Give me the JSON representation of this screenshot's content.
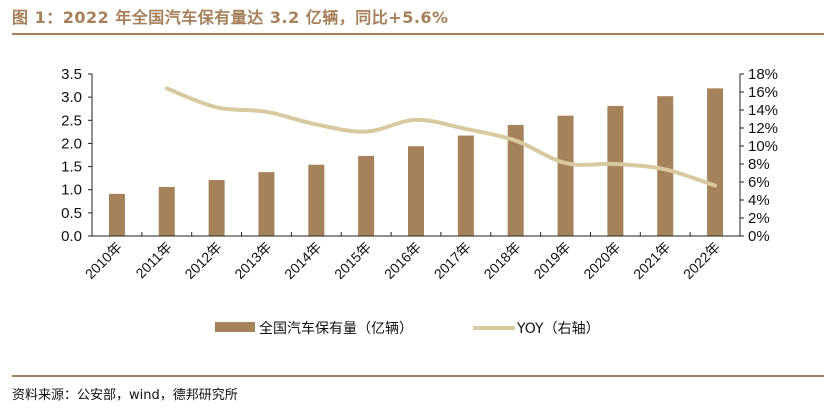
{
  "title": "图 1：2022 年全国汽车保有量达 3.2 亿辆，同比+5.6%",
  "source": "资料来源：公安部，wind，德邦研究所",
  "colors": {
    "bar": "#a6825b",
    "line": "#d9c9a0",
    "accent": "#a6805a"
  },
  "chart_data": {
    "type": "bar+line",
    "categories": [
      "2010年",
      "2011年",
      "2012年",
      "2013年",
      "2014年",
      "2015年",
      "2016年",
      "2017年",
      "2018年",
      "2019年",
      "2020年",
      "2021年",
      "2022年"
    ],
    "series": [
      {
        "name": "全国汽车保有量（亿辆）",
        "type": "bar",
        "axis": "left",
        "values": [
          0.91,
          1.06,
          1.21,
          1.38,
          1.54,
          1.73,
          1.94,
          2.17,
          2.4,
          2.6,
          2.81,
          3.02,
          3.19
        ]
      },
      {
        "name": "YOY（右轴）",
        "type": "line",
        "axis": "right",
        "values": [
          null,
          16.4,
          14.3,
          13.8,
          12.4,
          11.6,
          12.9,
          11.9,
          10.6,
          8.1,
          8.0,
          7.4,
          5.6
        ]
      }
    ],
    "ylim_left": [
      0,
      3.5
    ],
    "yticks_left": [
      "0.0",
      "0.5",
      "1.0",
      "1.5",
      "2.0",
      "2.5",
      "3.0",
      "3.5"
    ],
    "ylim_right": [
      0,
      18
    ],
    "yticks_right": [
      "0%",
      "2%",
      "4%",
      "6%",
      "8%",
      "10%",
      "12%",
      "14%",
      "16%",
      "18%"
    ],
    "grid": false,
    "legend_placement": "bottom"
  }
}
